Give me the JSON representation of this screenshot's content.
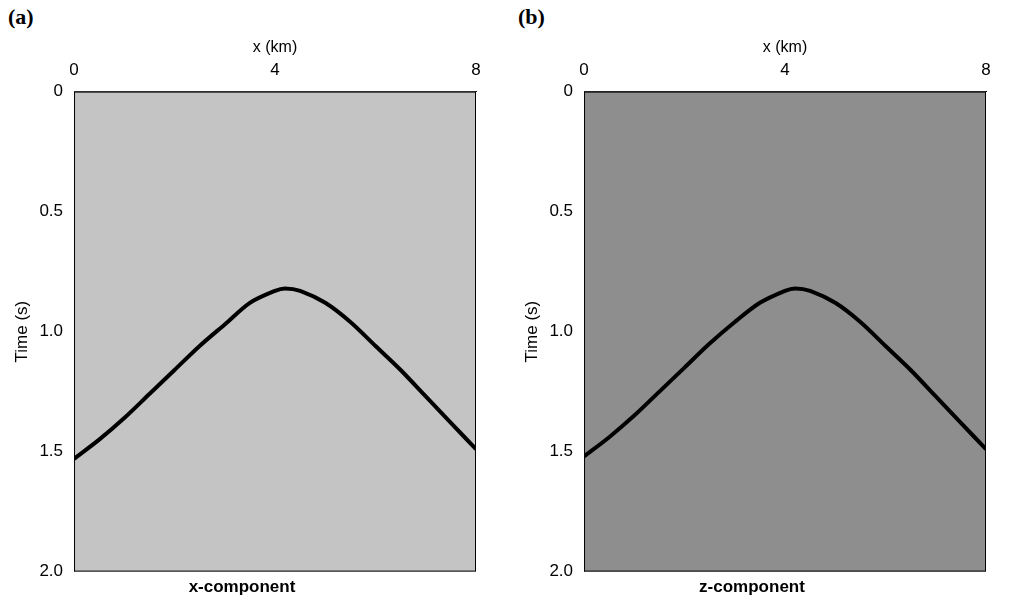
{
  "chart_data": [
    {
      "type": "line",
      "label": "(a)",
      "title": "x-component",
      "x_label": "x (km)",
      "y_label": "Time (s)",
      "x": [
        0,
        0.5,
        1,
        1.5,
        2,
        2.5,
        3,
        3.5,
        4,
        4.2,
        4.5,
        5,
        5.5,
        6,
        6.5,
        7,
        7.5,
        8
      ],
      "values": [
        1.53,
        1.45,
        1.36,
        1.26,
        1.16,
        1.06,
        0.97,
        0.88,
        0.83,
        0.82,
        0.83,
        0.88,
        0.96,
        1.06,
        1.16,
        1.27,
        1.38,
        1.49
      ],
      "color": "#000000",
      "xlim": [
        0,
        8
      ],
      "xticks": [
        0,
        4,
        8
      ],
      "ylim": [
        0,
        2
      ],
      "yticks": [
        0,
        0.5,
        {
          "value": 1,
          "label": "1.0"
        },
        1.5,
        {
          "value": 2,
          "label": "2.0"
        }
      ],
      "grid": false
    },
    {
      "type": "line",
      "label": "(b)",
      "title": "z-component",
      "x_label": "x (km)",
      "y_label": "Time (s)",
      "x": [
        0,
        0.5,
        1,
        1.5,
        2,
        2.5,
        3,
        3.5,
        4,
        4.2,
        4.5,
        5,
        5.5,
        6,
        6.5,
        7,
        7.5,
        8
      ],
      "values": [
        1.52,
        1.44,
        1.35,
        1.25,
        1.15,
        1.05,
        0.96,
        0.88,
        0.83,
        0.82,
        0.83,
        0.88,
        0.96,
        1.06,
        1.16,
        1.27,
        1.38,
        1.49
      ],
      "color": "#000000",
      "xlim": [
        0,
        8
      ],
      "xticks": [
        0,
        4,
        8
      ],
      "ylim": [
        0,
        2
      ],
      "yticks": [
        0,
        0.5,
        {
          "value": 1,
          "label": "1.0"
        },
        1.5,
        {
          "value": 2,
          "label": "2.0"
        }
      ],
      "grid": false
    }
  ]
}
